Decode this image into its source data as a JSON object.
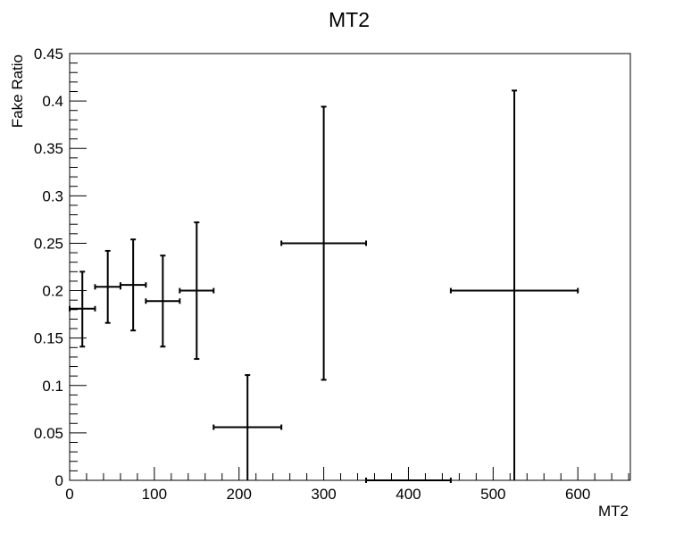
{
  "chart_data": {
    "type": "scatter",
    "title": "MT2",
    "xlabel": "MT2",
    "ylabel": "Fake Ratio",
    "xlim": [
      0,
      662
    ],
    "ylim": [
      0,
      0.45
    ],
    "x_ticks": [
      0,
      100,
      200,
      300,
      400,
      500,
      600
    ],
    "x_tick_labels": [
      "0",
      "100",
      "200",
      "300",
      "400",
      "500",
      "600"
    ],
    "y_ticks": [
      0,
      0.05,
      0.1,
      0.15,
      0.2,
      0.25,
      0.3,
      0.35,
      0.4,
      0.45
    ],
    "y_tick_labels": [
      "0",
      "0.05",
      "0.1",
      "0.15",
      "0.2",
      "0.25",
      "0.3",
      "0.35",
      "0.4",
      "0.45"
    ],
    "grid": false,
    "legend": "none",
    "points": [
      {
        "x": 15,
        "xlow": 0,
        "xhigh": 30,
        "y": 0.181,
        "ylow": 0.141,
        "yhigh": 0.22
      },
      {
        "x": 45,
        "xlow": 30,
        "xhigh": 60,
        "y": 0.204,
        "ylow": 0.166,
        "yhigh": 0.242
      },
      {
        "x": 75,
        "xlow": 60,
        "xhigh": 90,
        "y": 0.206,
        "ylow": 0.158,
        "yhigh": 0.254
      },
      {
        "x": 110,
        "xlow": 90,
        "xhigh": 130,
        "y": 0.189,
        "ylow": 0.141,
        "yhigh": 0.237
      },
      {
        "x": 150,
        "xlow": 130,
        "xhigh": 170,
        "y": 0.2,
        "ylow": 0.128,
        "yhigh": 0.272
      },
      {
        "x": 210,
        "xlow": 170,
        "xhigh": 250,
        "y": 0.056,
        "ylow": 0.0,
        "yhigh": 0.111
      },
      {
        "x": 300,
        "xlow": 250,
        "xhigh": 350,
        "y": 0.25,
        "ylow": 0.106,
        "yhigh": 0.394
      },
      {
        "x": 400,
        "xlow": 350,
        "xhigh": 450,
        "y": 0.0,
        "ylow": 0.0,
        "yhigh": 0.0
      },
      {
        "x": 525,
        "xlow": 450,
        "xhigh": 600,
        "y": 0.2,
        "ylow": 0.0,
        "yhigh": 0.411
      }
    ]
  }
}
